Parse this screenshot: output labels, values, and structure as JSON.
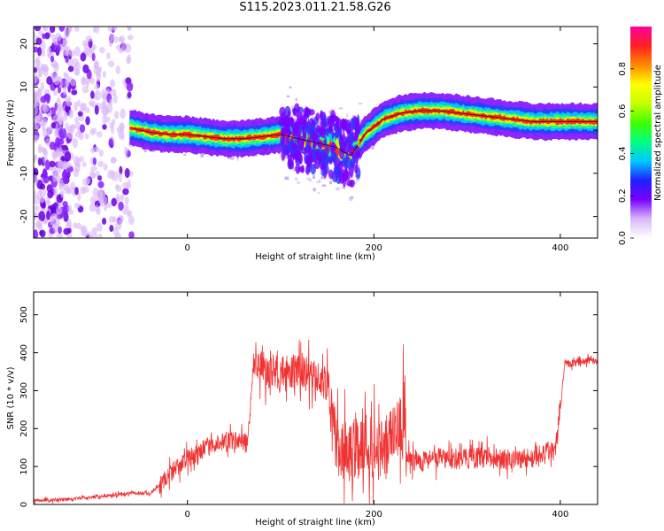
{
  "figure": {
    "title": "S115.2023.011.21.58.G26"
  },
  "chart_data": [
    {
      "type": "heatmap",
      "xlabel": "Height of straight line (km)",
      "ylabel": "Frequency (Hz)",
      "xlim": [
        -165,
        440
      ],
      "ylim": [
        -25,
        24
      ],
      "xticks": [
        0,
        200,
        400
      ],
      "xtick_labels": [
        "0",
        "200",
        "400"
      ],
      "yticks": [
        -20,
        -10,
        0,
        10,
        20
      ],
      "ytick_labels": [
        "-20",
        "-10",
        "0",
        "10",
        "20"
      ],
      "grid": false,
      "colorbar": {
        "label": "Normalized spectral amplitude",
        "range": [
          0,
          1
        ],
        "ticks": [
          0.0,
          0.2,
          0.4,
          0.6,
          0.8
        ],
        "tick_labels": [
          "0.0",
          "0.2",
          "0.4",
          "0.6",
          "0.8"
        ],
        "colormap": "rainbow",
        "colors": [
          "#ffffff",
          "#d8b8f8",
          "#7a00ff",
          "#2020ff",
          "#00c8ff",
          "#00ff80",
          "#40ff00",
          "#c8ff00",
          "#ffff00",
          "#ff8800",
          "#ff2020",
          "#ff00a0"
        ]
      },
      "ridge": {
        "x": [
          -60,
          -40,
          -20,
          0,
          20,
          40,
          60,
          80,
          100,
          120,
          140,
          160,
          175,
          190,
          210,
          230,
          250,
          270,
          290,
          310,
          330,
          350,
          370,
          390,
          410,
          430,
          440
        ],
        "y": [
          0.5,
          -0.5,
          -1,
          -1,
          -1.5,
          -2,
          -2,
          -1.5,
          -1,
          -2,
          -3,
          -4,
          -6,
          -1,
          2.5,
          4,
          4.5,
          4.5,
          4,
          3.5,
          3,
          2.5,
          2,
          2,
          2,
          2,
          2
        ]
      },
      "noise_region_x": [
        -165,
        -60
      ]
    },
    {
      "type": "line",
      "xlabel": "Height of straight line (km)",
      "ylabel": "SNR (10 * v/v)",
      "xlim": [
        -165,
        440
      ],
      "ylim": [
        0,
        560
      ],
      "xticks": [
        0,
        200,
        400
      ],
      "xtick_labels": [
        "0",
        "200",
        "400"
      ],
      "yticks": [
        0,
        100,
        200,
        300,
        400,
        500
      ],
      "ytick_labels": [
        "0",
        "100",
        "200",
        "300",
        "400",
        "500"
      ],
      "grid": false,
      "color": "#f03232",
      "series": [
        {
          "x": [
            -165,
            -140,
            -120,
            -100,
            -80,
            -60,
            -40,
            -30,
            -20,
            -10,
            0,
            10,
            20,
            30,
            40,
            50,
            60,
            65,
            70,
            72,
            75,
            80,
            90,
            100,
            110,
            120,
            130,
            140,
            150,
            152,
            155,
            160,
            170,
            180,
            190,
            200,
            210,
            220,
            230,
            232,
            235,
            240,
            250,
            260,
            280,
            300,
            320,
            340,
            360,
            380,
            395,
            400,
            405,
            410,
            420,
            430,
            440
          ],
          "y": [
            10,
            12,
            15,
            20,
            25,
            30,
            30,
            50,
            80,
            100,
            120,
            135,
            150,
            160,
            165,
            170,
            165,
            170,
            340,
            380,
            370,
            360,
            350,
            340,
            350,
            360,
            340,
            330,
            320,
            300,
            200,
            160,
            140,
            150,
            160,
            150,
            140,
            170,
            200,
            260,
            130,
            120,
            115,
            120,
            120,
            120,
            125,
            120,
            120,
            130,
            150,
            250,
            380,
            370,
            375,
            380,
            380
          ]
        }
      ]
    }
  ]
}
